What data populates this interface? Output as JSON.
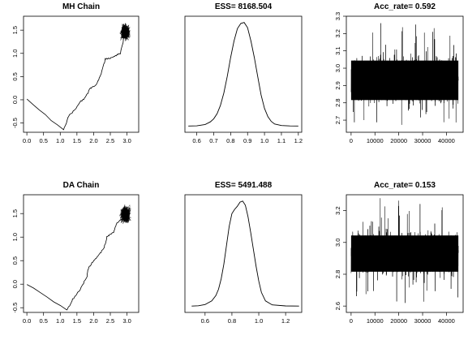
{
  "chart_data": [
    {
      "type": "line",
      "title": "MH Chain",
      "xlabel": "",
      "ylabel": "",
      "xlim": [
        -0.1,
        3.35
      ],
      "ylim": [
        -0.7,
        1.8
      ],
      "x_ticks": [
        "0.0",
        "0.5",
        "1.0",
        "1.5",
        "2.0",
        "2.5",
        "3.0"
      ],
      "y_ticks": [
        "-0.5",
        "0.0",
        "0.5",
        "1.0",
        "1.5"
      ],
      "path": {
        "x": [
          0.0,
          1.1,
          1.25,
          1.45,
          1.6,
          1.75,
          1.9,
          2.05,
          2.2,
          2.35,
          2.5,
          2.65,
          2.8,
          2.95
        ],
        "y": [
          0.0,
          -0.65,
          -0.35,
          -0.2,
          -0.05,
          0.05,
          0.25,
          0.3,
          0.5,
          0.88,
          0.9,
          0.95,
          1.0,
          1.45
        ]
      },
      "cloud": {
        "center": [
          2.95,
          1.45
        ],
        "spread": [
          0.15,
          0.17
        ]
      }
    },
    {
      "type": "line",
      "title": "ESS= 8168.504",
      "xlabel": "",
      "ylabel": "",
      "xlim": [
        0.53,
        1.22
      ],
      "x_ticks": [
        "0.6",
        "0.7",
        "0.8",
        "0.9",
        "1.0",
        "1.1",
        "1.2"
      ],
      "density": {
        "x": [
          0.55,
          0.6,
          0.65,
          0.68,
          0.7,
          0.72,
          0.74,
          0.76,
          0.78,
          0.8,
          0.82,
          0.84,
          0.86,
          0.88,
          0.9,
          0.92,
          0.94,
          0.96,
          0.98,
          1.0,
          1.02,
          1.04,
          1.06,
          1.1,
          1.15,
          1.2
        ],
        "y": [
          0.0,
          0.002,
          0.015,
          0.04,
          0.07,
          0.12,
          0.2,
          0.32,
          0.48,
          0.66,
          0.82,
          0.94,
          0.99,
          1.0,
          0.95,
          0.82,
          0.66,
          0.48,
          0.3,
          0.17,
          0.09,
          0.045,
          0.02,
          0.005,
          0.001,
          0.0
        ]
      }
    },
    {
      "type": "line",
      "title": "Acc_rate= 0.592",
      "xlabel": "",
      "ylabel": "",
      "xlim": [
        -2000,
        47000
      ],
      "ylim": [
        2.63,
        3.3
      ],
      "x_ticks": [
        "0",
        "10000",
        "20000",
        "30000",
        "40000"
      ],
      "y_ticks": [
        "2.7",
        "2.8",
        "2.9",
        "3.0",
        "3.1",
        "3.2",
        "3.3"
      ],
      "trace": {
        "n": 45000,
        "band": [
          2.78,
          3.08
        ],
        "range": [
          2.66,
          3.26
        ]
      }
    },
    {
      "type": "line",
      "title": "DA Chain",
      "xlabel": "",
      "ylabel": "",
      "xlim": [
        -0.1,
        3.35
      ],
      "ylim": [
        -0.6,
        1.9
      ],
      "x_ticks": [
        "0.0",
        "0.5",
        "1.0",
        "1.5",
        "2.0",
        "2.5",
        "3.0"
      ],
      "y_ticks": [
        "-0.5",
        "0.0",
        "0.5",
        "1.0",
        "1.5"
      ],
      "path": {
        "x": [
          0.0,
          1.2,
          1.35,
          1.5,
          1.65,
          1.8,
          1.85,
          2.0,
          2.15,
          2.3,
          2.4,
          2.5,
          2.6,
          2.7,
          2.95
        ],
        "y": [
          0.0,
          -0.55,
          -0.35,
          -0.2,
          -0.05,
          0.15,
          0.35,
          0.5,
          0.62,
          0.75,
          1.0,
          1.05,
          1.1,
          1.3,
          1.45
        ]
      },
      "cloud": {
        "center": [
          2.95,
          1.48
        ],
        "spread": [
          0.16,
          0.18
        ]
      }
    },
    {
      "type": "line",
      "title": "ESS= 5491.488",
      "xlabel": "",
      "ylabel": "",
      "xlim": [
        0.45,
        1.32
      ],
      "x_ticks": [
        "0.6",
        "0.8",
        "1.0",
        "1.2"
      ],
      "density": {
        "x": [
          0.5,
          0.55,
          0.6,
          0.65,
          0.68,
          0.7,
          0.72,
          0.74,
          0.76,
          0.78,
          0.8,
          0.82,
          0.84,
          0.86,
          0.88,
          0.9,
          0.92,
          0.94,
          0.96,
          0.98,
          1.0,
          1.02,
          1.05,
          1.1,
          1.2,
          1.3
        ],
        "y": [
          0.0,
          0.003,
          0.015,
          0.05,
          0.1,
          0.16,
          0.26,
          0.4,
          0.58,
          0.76,
          0.88,
          0.92,
          0.95,
          0.99,
          1.0,
          0.96,
          0.85,
          0.7,
          0.54,
          0.38,
          0.24,
          0.13,
          0.05,
          0.012,
          0.002,
          0.0
        ]
      }
    },
    {
      "type": "line",
      "title": "Acc_rate= 0.153",
      "xlabel": "",
      "ylabel": "",
      "xlim": [
        -2000,
        47000
      ],
      "ylim": [
        2.56,
        3.3
      ],
      "x_ticks": [
        "0",
        "10000",
        "20000",
        "30000",
        "40000"
      ],
      "y_ticks": [
        "2.6",
        "2.8",
        "3.0",
        "3.2"
      ],
      "trace": {
        "n": 45000,
        "band": [
          2.78,
          3.08
        ],
        "range": [
          2.6,
          3.28
        ]
      }
    }
  ]
}
